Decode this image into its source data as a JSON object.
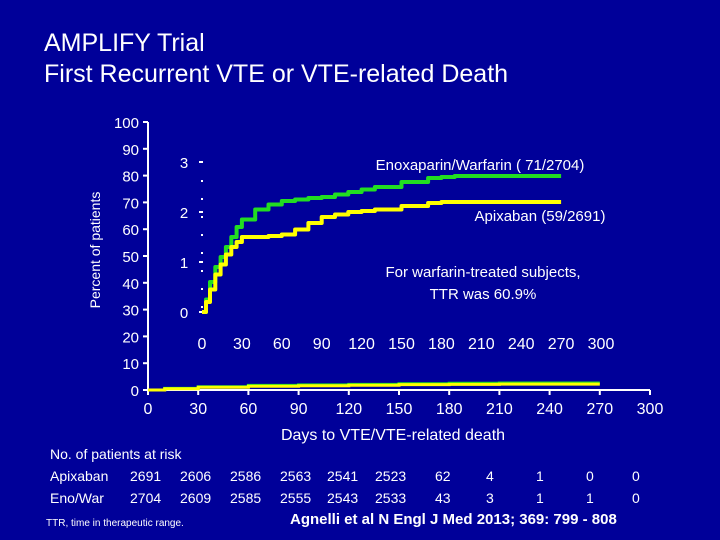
{
  "title": {
    "line1": "AMPLIFY Trial",
    "line2": "First Recurrent VTE or VTE-related Death"
  },
  "colors": {
    "background": "#000099",
    "text": "#ffffff",
    "enoxaparin": "#22dd22",
    "apixaban": "#ffff00"
  },
  "chart_data": [
    {
      "type": "line",
      "name": "main",
      "xlabel": "Days to VTE/VTE-related death",
      "ylabel": "Percent of patients",
      "xlim": [
        0,
        300
      ],
      "ylim": [
        0,
        100
      ],
      "x_ticks": [
        "0",
        "30",
        "60",
        "90",
        "120",
        "150",
        "180",
        "210",
        "240",
        "270",
        "300"
      ],
      "y_ticks": [
        "0",
        "10",
        "20",
        "30",
        "40",
        "50",
        "60",
        "70",
        "80",
        "90",
        "100"
      ],
      "series": [
        {
          "name": "Enoxaparin/Warfarin",
          "color": "#22dd22",
          "x": [
            0,
            10,
            30,
            60,
            90,
            120,
            150,
            180,
            210,
            240,
            270
          ],
          "y": [
            0,
            0.6,
            1.2,
            1.7,
            1.9,
            2.1,
            2.3,
            2.5,
            2.6,
            2.6,
            2.6
          ]
        },
        {
          "name": "Apixaban",
          "color": "#ffff00",
          "x": [
            0,
            10,
            30,
            60,
            90,
            120,
            150,
            180,
            210,
            240,
            270
          ],
          "y": [
            0,
            0.5,
            1.0,
            1.4,
            1.6,
            1.8,
            2.0,
            2.1,
            2.2,
            2.2,
            2.2
          ]
        }
      ]
    },
    {
      "type": "line",
      "name": "inset",
      "xlim": [
        0,
        300
      ],
      "ylim": [
        0,
        3
      ],
      "x_ticks": [
        "0",
        "30",
        "60",
        "90",
        "120",
        "150",
        "180",
        "210",
        "240",
        "270",
        "300"
      ],
      "y_ticks": [
        "0",
        "1",
        "2",
        "3"
      ],
      "annotations": [
        "Enoxaparin/Warfarin ( 71/2704)",
        "Apixaban (59/2691)",
        "For warfarin-treated subjects,",
        "TTR was 60.9%"
      ],
      "series": [
        {
          "name": "Enoxaparin/Warfarin",
          "color": "#22dd22",
          "x": [
            0,
            3,
            6,
            10,
            14,
            18,
            22,
            26,
            30,
            40,
            50,
            60,
            70,
            80,
            90,
            100,
            110,
            120,
            130,
            150,
            170,
            180,
            190,
            200,
            240,
            270
          ],
          "y": [
            0,
            0.25,
            0.6,
            0.9,
            1.1,
            1.3,
            1.5,
            1.7,
            1.85,
            2.05,
            2.15,
            2.22,
            2.25,
            2.28,
            2.3,
            2.35,
            2.4,
            2.45,
            2.5,
            2.6,
            2.68,
            2.7,
            2.72,
            2.72,
            2.72,
            2.72
          ]
        },
        {
          "name": "Apixaban",
          "color": "#ffff00",
          "x": [
            0,
            3,
            6,
            10,
            14,
            18,
            22,
            26,
            30,
            40,
            50,
            60,
            70,
            80,
            90,
            100,
            110,
            120,
            130,
            150,
            170,
            180,
            190,
            200,
            240,
            270
          ],
          "y": [
            0,
            0.2,
            0.45,
            0.75,
            0.95,
            1.15,
            1.3,
            1.4,
            1.5,
            1.5,
            1.52,
            1.55,
            1.65,
            1.78,
            1.9,
            1.95,
            2.0,
            2.02,
            2.05,
            2.12,
            2.18,
            2.2,
            2.2,
            2.2,
            2.2,
            2.2
          ]
        }
      ]
    }
  ],
  "risk_table": {
    "title": "No. of patients at risk",
    "rows": [
      {
        "label": "Apixaban",
        "values": [
          "2691",
          "2606",
          "2586",
          "2563",
          "2541",
          "2523",
          "62",
          "4",
          "1",
          "0",
          "0"
        ]
      },
      {
        "label": "Eno/War",
        "values": [
          "2704",
          "2609",
          "2585",
          "2555",
          "2543",
          "2533",
          "43",
          "3",
          "1",
          "1",
          "0"
        ]
      }
    ]
  },
  "footnote": "TTR, time in therapeutic range.",
  "citation": "Agnelli et al  N Engl J Med 2013; 369: 799 - 808"
}
